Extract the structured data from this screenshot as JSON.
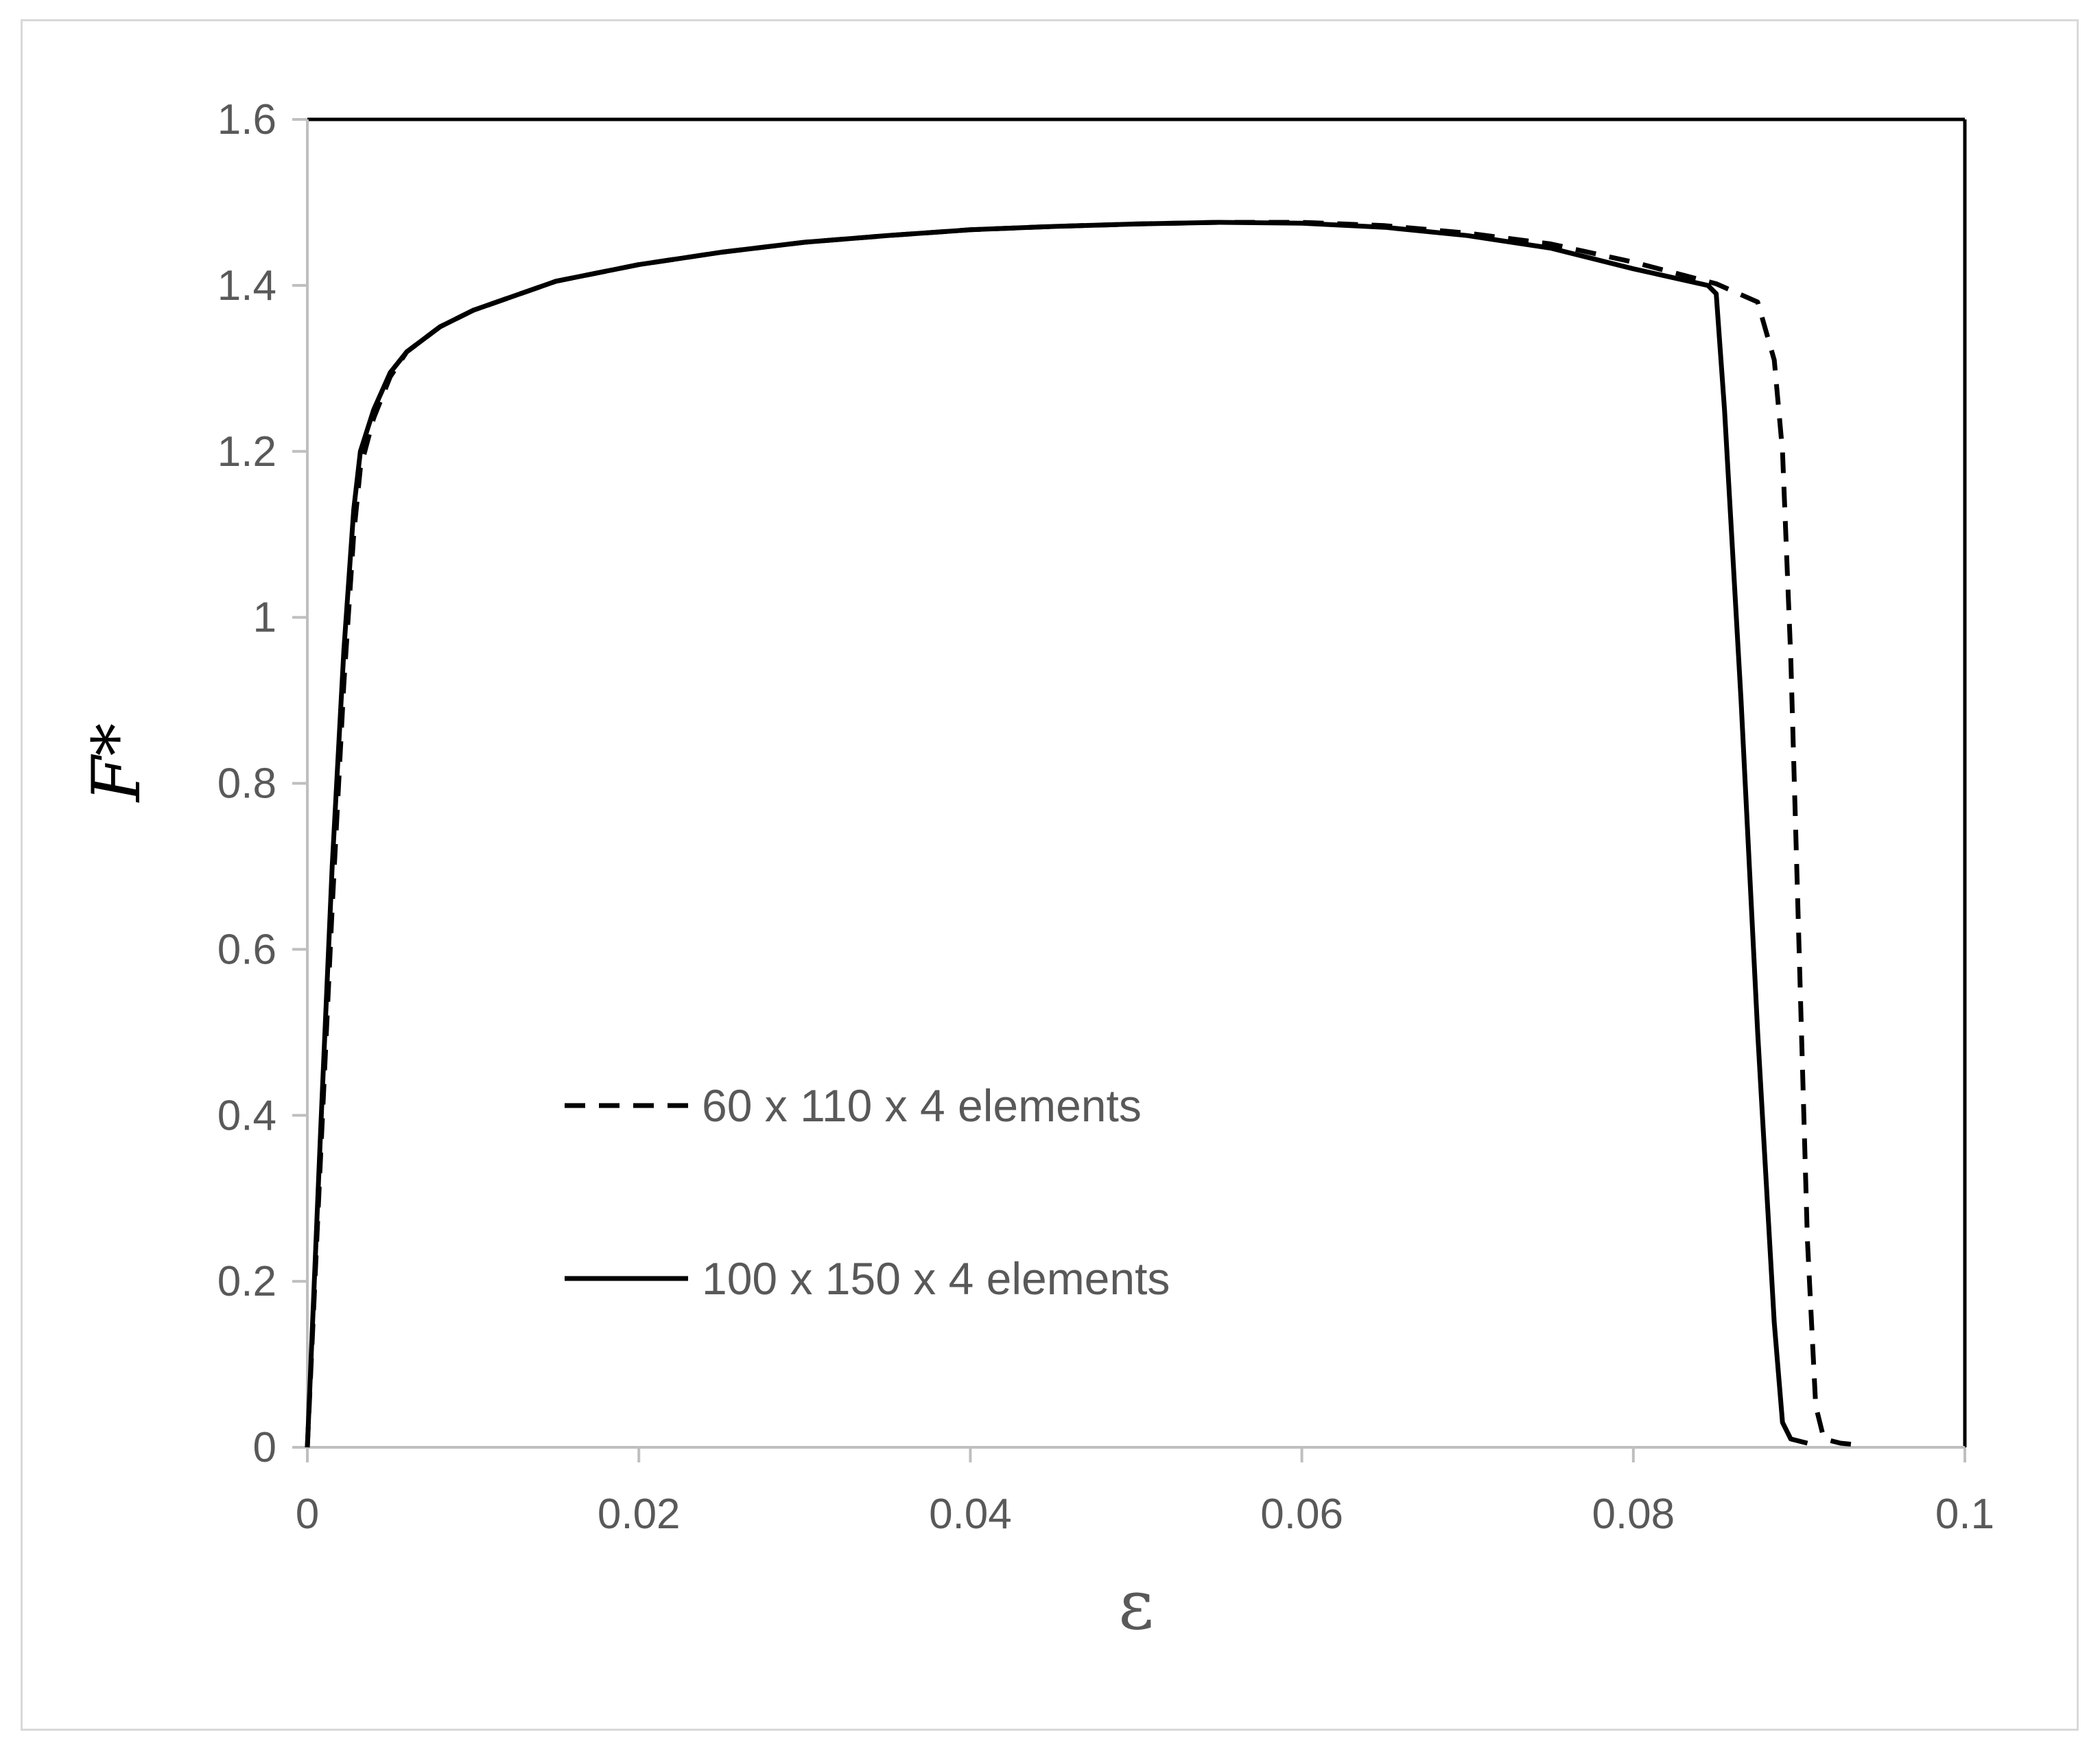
{
  "chart_data": {
    "type": "line",
    "title": "",
    "xlabel": "ε",
    "ylabel": "F*",
    "xlim": [
      0,
      0.1
    ],
    "ylim": [
      0,
      1.6
    ],
    "x_ticks": [
      "0",
      "0.02",
      "0.04",
      "0.06",
      "0.08",
      "0.1"
    ],
    "y_ticks": [
      "0",
      "0.2",
      "0.4",
      "0.6",
      "0.8",
      "1",
      "1.2",
      "1.4",
      "1.6"
    ],
    "grid": false,
    "legend_position": "bottom-left",
    "series": [
      {
        "name": "60 x 110 x 4 elements",
        "style": "dashed",
        "color": "#000000",
        "points": [
          [
            0,
            0
          ],
          [
            0.0008,
            0.35
          ],
          [
            0.0015,
            0.65
          ],
          [
            0.0022,
            0.92
          ],
          [
            0.0028,
            1.1
          ],
          [
            0.0032,
            1.18
          ],
          [
            0.004,
            1.24
          ],
          [
            0.005,
            1.29
          ],
          [
            0.006,
            1.32
          ],
          [
            0.008,
            1.35
          ],
          [
            0.01,
            1.37
          ],
          [
            0.015,
            1.405
          ],
          [
            0.02,
            1.425
          ],
          [
            0.025,
            1.44
          ],
          [
            0.03,
            1.452
          ],
          [
            0.035,
            1.46
          ],
          [
            0.04,
            1.467
          ],
          [
            0.045,
            1.471
          ],
          [
            0.05,
            1.474
          ],
          [
            0.055,
            1.476
          ],
          [
            0.06,
            1.476
          ],
          [
            0.065,
            1.472
          ],
          [
            0.07,
            1.463
          ],
          [
            0.075,
            1.45
          ],
          [
            0.08,
            1.428
          ],
          [
            0.085,
            1.402
          ],
          [
            0.0875,
            1.38
          ],
          [
            0.0885,
            1.31
          ],
          [
            0.089,
            1.2
          ],
          [
            0.0895,
            0.95
          ],
          [
            0.09,
            0.6
          ],
          [
            0.0905,
            0.25
          ],
          [
            0.091,
            0.05
          ],
          [
            0.0915,
            0.01
          ],
          [
            0.0925,
            0.005
          ],
          [
            0.0935,
            0.003
          ]
        ]
      },
      {
        "name": "100 x 150 x 4 elements",
        "style": "solid",
        "color": "#000000",
        "points": [
          [
            0,
            0
          ],
          [
            0.0008,
            0.38
          ],
          [
            0.0015,
            0.7
          ],
          [
            0.0022,
            0.96
          ],
          [
            0.0028,
            1.13
          ],
          [
            0.0032,
            1.2
          ],
          [
            0.004,
            1.25
          ],
          [
            0.005,
            1.295
          ],
          [
            0.006,
            1.32
          ],
          [
            0.008,
            1.35
          ],
          [
            0.01,
            1.37
          ],
          [
            0.015,
            1.405
          ],
          [
            0.02,
            1.425
          ],
          [
            0.025,
            1.44
          ],
          [
            0.03,
            1.452
          ],
          [
            0.035,
            1.46
          ],
          [
            0.04,
            1.467
          ],
          [
            0.045,
            1.471
          ],
          [
            0.05,
            1.474
          ],
          [
            0.055,
            1.476
          ],
          [
            0.06,
            1.475
          ],
          [
            0.065,
            1.47
          ],
          [
            0.07,
            1.46
          ],
          [
            0.075,
            1.445
          ],
          [
            0.08,
            1.42
          ],
          [
            0.0845,
            1.4
          ],
          [
            0.085,
            1.39
          ],
          [
            0.0855,
            1.25
          ],
          [
            0.0865,
            0.9
          ],
          [
            0.0875,
            0.5
          ],
          [
            0.0885,
            0.15
          ],
          [
            0.089,
            0.03
          ],
          [
            0.0895,
            0.01
          ],
          [
            0.0905,
            0.005
          ]
        ]
      }
    ]
  }
}
